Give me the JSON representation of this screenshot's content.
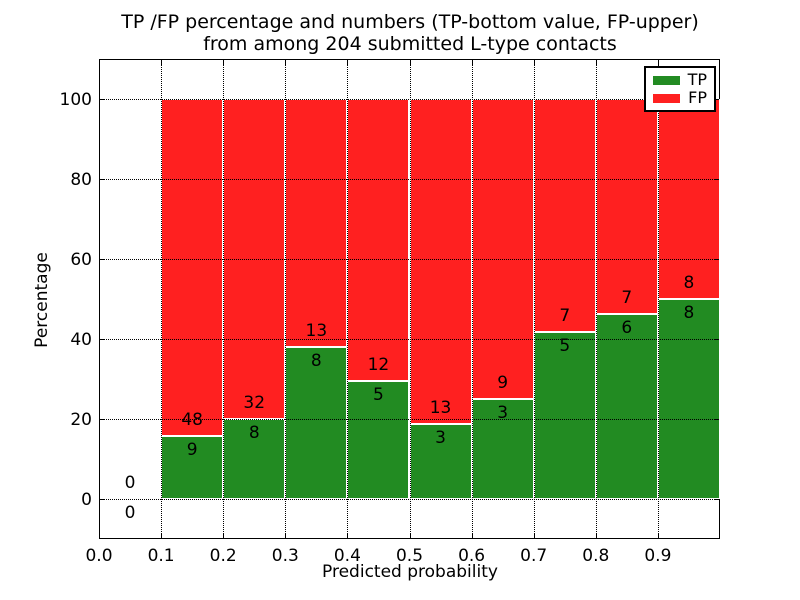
{
  "chart_data": {
    "type": "bar",
    "variant": "stacked-percentage-histogram",
    "title_line1": "TP /FP percentage and numbers (TP-bottom value, FP-upper)",
    "title_line2": "from among 204 submitted L-type contacts",
    "xlabel": "Predicted probability",
    "ylabel": "Percentage",
    "xlim": [
      0.0,
      1.0
    ],
    "ylim": [
      -10,
      110
    ],
    "xticks": [
      "0.0",
      "0.1",
      "0.2",
      "0.3",
      "0.4",
      "0.5",
      "0.6",
      "0.7",
      "0.8",
      "0.9"
    ],
    "yticks": [
      "0",
      "20",
      "40",
      "60",
      "80",
      "100"
    ],
    "grid": true,
    "grid_style": "dotted",
    "legend_position": "upper-right",
    "series": [
      {
        "name": "TP",
        "color": "#228b22"
      },
      {
        "name": "FP",
        "color": "#ff2020"
      }
    ],
    "bins": [
      {
        "x_start": 0.0,
        "x_end": 0.1,
        "tp": 0,
        "fp": 0
      },
      {
        "x_start": 0.1,
        "x_end": 0.2,
        "tp": 9,
        "fp": 48
      },
      {
        "x_start": 0.2,
        "x_end": 0.3,
        "tp": 8,
        "fp": 32
      },
      {
        "x_start": 0.3,
        "x_end": 0.4,
        "tp": 8,
        "fp": 13
      },
      {
        "x_start": 0.4,
        "x_end": 0.5,
        "tp": 5,
        "fp": 12
      },
      {
        "x_start": 0.5,
        "x_end": 0.6,
        "tp": 3,
        "fp": 13
      },
      {
        "x_start": 0.6,
        "x_end": 0.7,
        "tp": 3,
        "fp": 9
      },
      {
        "x_start": 0.7,
        "x_end": 0.8,
        "tp": 5,
        "fp": 7
      },
      {
        "x_start": 0.8,
        "x_end": 0.9,
        "tp": 6,
        "fp": 7
      },
      {
        "x_start": 0.9,
        "x_end": 1.0,
        "tp": 8,
        "fp": 8
      }
    ]
  }
}
